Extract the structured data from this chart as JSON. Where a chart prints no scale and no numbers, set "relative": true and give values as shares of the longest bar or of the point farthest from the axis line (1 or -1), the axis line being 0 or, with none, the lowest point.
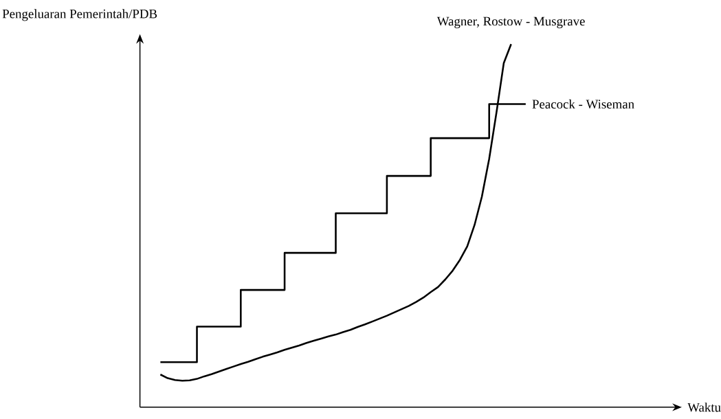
{
  "chart_data": {
    "type": "line",
    "relative": true,
    "annotations": [
      "Waktu"
    ],
    "ylabel": "Pengeluaran Pemerintah/PDB",
    "categories": [
      null,
      null,
      null,
      null,
      null,
      null,
      null,
      null,
      null,
      null,
      null,
      null,
      null,
      null,
      null,
      null,
      null,
      null,
      null,
      null,
      null,
      null,
      null,
      null,
      null,
      null,
      null,
      null,
      null,
      null,
      null,
      null,
      null,
      null,
      null,
      null,
      null,
      null,
      null,
      null,
      null,
      null,
      null,
      null,
      null,
      null,
      null,
      null,
      null,
      null,
      null
    ],
    "series": [
      {
        "name": "Wagner, Rostow - Musgrave",
        "color": "#000000",
        "values": [
          0.09,
          0.08,
          0.075,
          0.073,
          0.074,
          0.078,
          0.085,
          0.091,
          0.098,
          0.105,
          0.112,
          0.119,
          0.125,
          0.132,
          0.139,
          0.145,
          0.151,
          0.158,
          0.164,
          0.17,
          0.177,
          0.183,
          0.189,
          0.195,
          0.2,
          0.207,
          0.213,
          0.221,
          0.228,
          0.236,
          0.244,
          0.252,
          0.261,
          0.27,
          0.279,
          0.29,
          0.302,
          0.317,
          0.331,
          0.352,
          0.376,
          0.406,
          0.443,
          0.502,
          0.58,
          0.684,
          0.812,
          0.948,
          1,
          null,
          null
        ]
      },
      {
        "name": "Peacock - Wiseman",
        "type": "step",
        "color": "#000000",
        "values": [
          0.124,
          0.124,
          0.124,
          0.124,
          0.124,
          0.222,
          0.222,
          0.222,
          0.222,
          0.222,
          0.222,
          0.323,
          0.323,
          0.323,
          0.323,
          0.323,
          0.323,
          0.425,
          0.425,
          0.425,
          0.425,
          0.425,
          0.425,
          0.425,
          0.534,
          0.534,
          0.534,
          0.534,
          0.534,
          0.534,
          0.534,
          0.637,
          0.637,
          0.637,
          0.637,
          0.637,
          0.637,
          0.741,
          0.741,
          0.741,
          0.741,
          0.741,
          0.741,
          0.741,
          0.741,
          0.835,
          0.835,
          0.835,
          0.835,
          0.835,
          0.835
        ]
      }
    ]
  }
}
